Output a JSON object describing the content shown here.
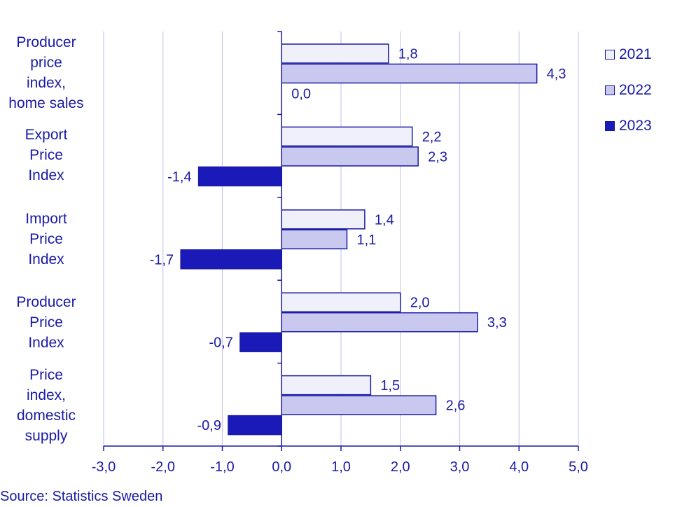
{
  "chart_data": {
    "type": "bar",
    "orientation": "horizontal",
    "categories": [
      "Producer\nprice\nindex,\nhome sales",
      "Export\nPrice\nIndex",
      "Import\nPrice\nIndex",
      "Producer\nPrice\nIndex",
      "Price\nindex,\ndomestic\nsupply"
    ],
    "series": [
      {
        "name": "2021",
        "color": "#f0f0fb",
        "values": [
          1.8,
          2.2,
          1.4,
          2.0,
          1.5
        ],
        "labels": [
          "1,8",
          "2,2",
          "1,4",
          "2,0",
          "1,5"
        ]
      },
      {
        "name": "2022",
        "color": "#c9c9ef",
        "values": [
          4.3,
          2.3,
          1.1,
          3.3,
          2.6
        ],
        "labels": [
          "4,3",
          "2,3",
          "1,1",
          "3,3",
          "2,6"
        ]
      },
      {
        "name": "2023",
        "color": "#1a1ab8",
        "values": [
          0.0,
          -1.4,
          -1.7,
          -0.7,
          -0.9
        ],
        "labels": [
          "0,0",
          "-1,4",
          "-1,7",
          "-0,7",
          "-0,9"
        ]
      }
    ],
    "xlim": [
      -3.0,
      5.0
    ],
    "xticks": [
      -3.0,
      -2.0,
      -1.0,
      0.0,
      1.0,
      2.0,
      3.0,
      4.0,
      5.0
    ],
    "xtick_labels": [
      "-3,0",
      "-2,0",
      "-1,0",
      "0,0",
      "1,0",
      "2,0",
      "3,0",
      "4,0",
      "5,0"
    ],
    "grid": true,
    "legend_position": "top-right"
  },
  "source": "Source: Statistics Sweden"
}
